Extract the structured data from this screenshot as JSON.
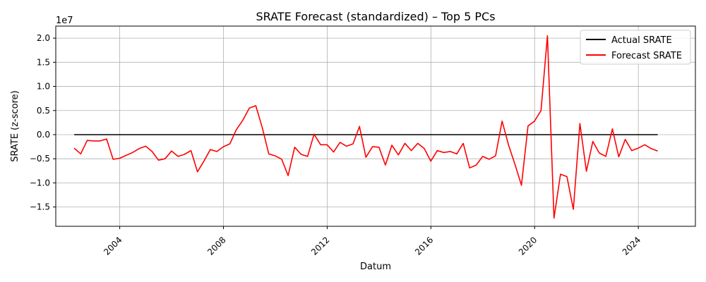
{
  "chart_data": {
    "type": "line",
    "title": "SRATE Forecast (standardized) – Top 5 PCs",
    "xlabel": "Datum",
    "ylabel": "SRATE (z-score)",
    "y_scale_label": "1e7",
    "xlim": [
      "2001-07-14",
      "2026-03-15"
    ],
    "ylim": [
      -1.9,
      2.25
    ],
    "x_ticks": [
      {
        "date": "2004-01-01",
        "label": "2004"
      },
      {
        "date": "2008-01-01",
        "label": "2008"
      },
      {
        "date": "2012-01-01",
        "label": "2012"
      },
      {
        "date": "2016-01-01",
        "label": "2016"
      },
      {
        "date": "2020-01-01",
        "label": "2020"
      },
      {
        "date": "2024-01-01",
        "label": "2024"
      }
    ],
    "y_ticks": [
      {
        "value": -1.5,
        "label": "−1.5"
      },
      {
        "value": -1.0,
        "label": "−1.0"
      },
      {
        "value": -0.5,
        "label": "−0.5"
      },
      {
        "value": 0.0,
        "label": "0.0"
      },
      {
        "value": 0.5,
        "label": "0.5"
      },
      {
        "value": 1.0,
        "label": "1.0"
      },
      {
        "value": 1.5,
        "label": "1.5"
      },
      {
        "value": 2.0,
        "label": "2.0"
      }
    ],
    "x_tick_rotation": 45,
    "grid": true,
    "legend": "top-right",
    "series": [
      {
        "name": "Actual SRATE",
        "color": "#000000",
        "x": [
          "2002-03-31",
          "2024-09-30"
        ],
        "y": [
          0.0,
          0.0
        ]
      },
      {
        "name": "Forecast SRATE",
        "color": "#ff0000",
        "x": [
          "2002-03-31",
          "2002-06-30",
          "2002-09-30",
          "2002-12-31",
          "2003-03-31",
          "2003-06-30",
          "2003-09-30",
          "2003-12-31",
          "2004-03-31",
          "2004-06-30",
          "2004-09-30",
          "2004-12-31",
          "2005-03-31",
          "2005-06-30",
          "2005-09-30",
          "2005-12-31",
          "2006-03-31",
          "2006-06-30",
          "2006-09-30",
          "2006-12-31",
          "2007-03-31",
          "2007-06-30",
          "2007-09-30",
          "2007-12-31",
          "2008-03-31",
          "2008-06-30",
          "2008-09-30",
          "2008-12-31",
          "2009-03-31",
          "2009-06-30",
          "2009-09-30",
          "2009-12-31",
          "2010-03-31",
          "2010-06-30",
          "2010-09-30",
          "2010-12-31",
          "2011-03-31",
          "2011-06-30",
          "2011-09-30",
          "2011-12-31",
          "2012-03-31",
          "2012-06-30",
          "2012-09-30",
          "2012-12-31",
          "2013-03-31",
          "2013-06-30",
          "2013-09-30",
          "2013-12-31",
          "2014-03-31",
          "2014-06-30",
          "2014-09-30",
          "2014-12-31",
          "2015-03-31",
          "2015-06-30",
          "2015-09-30",
          "2015-12-31",
          "2016-03-31",
          "2016-06-30",
          "2016-09-30",
          "2016-12-31",
          "2017-03-31",
          "2017-06-30",
          "2017-09-30",
          "2017-12-31",
          "2018-03-31",
          "2018-06-30",
          "2018-09-30",
          "2018-12-31",
          "2019-03-31",
          "2019-06-30",
          "2019-09-30",
          "2019-12-31",
          "2020-03-31",
          "2020-06-30",
          "2020-09-30",
          "2020-12-31",
          "2021-03-31",
          "2021-06-30",
          "2021-09-30",
          "2021-12-31",
          "2022-03-31",
          "2022-06-30",
          "2022-09-30",
          "2022-12-31",
          "2023-03-31",
          "2023-06-30",
          "2023-09-30",
          "2023-12-31",
          "2024-03-31",
          "2024-06-30",
          "2024-09-30"
        ],
        "y": [
          -0.28,
          -0.4,
          -0.12,
          -0.13,
          -0.13,
          -0.09,
          -0.51,
          -0.49,
          -0.43,
          -0.37,
          -0.29,
          -0.24,
          -0.35,
          -0.53,
          -0.5,
          -0.34,
          -0.45,
          -0.41,
          -0.33,
          -0.77,
          -0.55,
          -0.31,
          -0.35,
          -0.25,
          -0.19,
          0.1,
          0.3,
          0.55,
          0.6,
          0.15,
          -0.4,
          -0.44,
          -0.51,
          -0.85,
          -0.26,
          -0.41,
          -0.45,
          0.01,
          -0.21,
          -0.21,
          -0.36,
          -0.16,
          -0.24,
          -0.19,
          0.17,
          -0.47,
          -0.25,
          -0.26,
          -0.63,
          -0.22,
          -0.42,
          -0.18,
          -0.33,
          -0.18,
          -0.29,
          -0.55,
          -0.33,
          -0.37,
          -0.35,
          -0.4,
          -0.18,
          -0.69,
          -0.63,
          -0.45,
          -0.51,
          -0.44,
          0.28,
          -0.22,
          -0.62,
          -1.05,
          0.18,
          0.28,
          0.5,
          2.05,
          -1.73,
          -0.82,
          -0.87,
          -1.55,
          0.23,
          -0.76,
          -0.14,
          -0.38,
          -0.45,
          0.12,
          -0.46,
          -0.1,
          -0.33,
          -0.28,
          -0.21,
          -0.29,
          -0.34
        ]
      }
    ]
  }
}
